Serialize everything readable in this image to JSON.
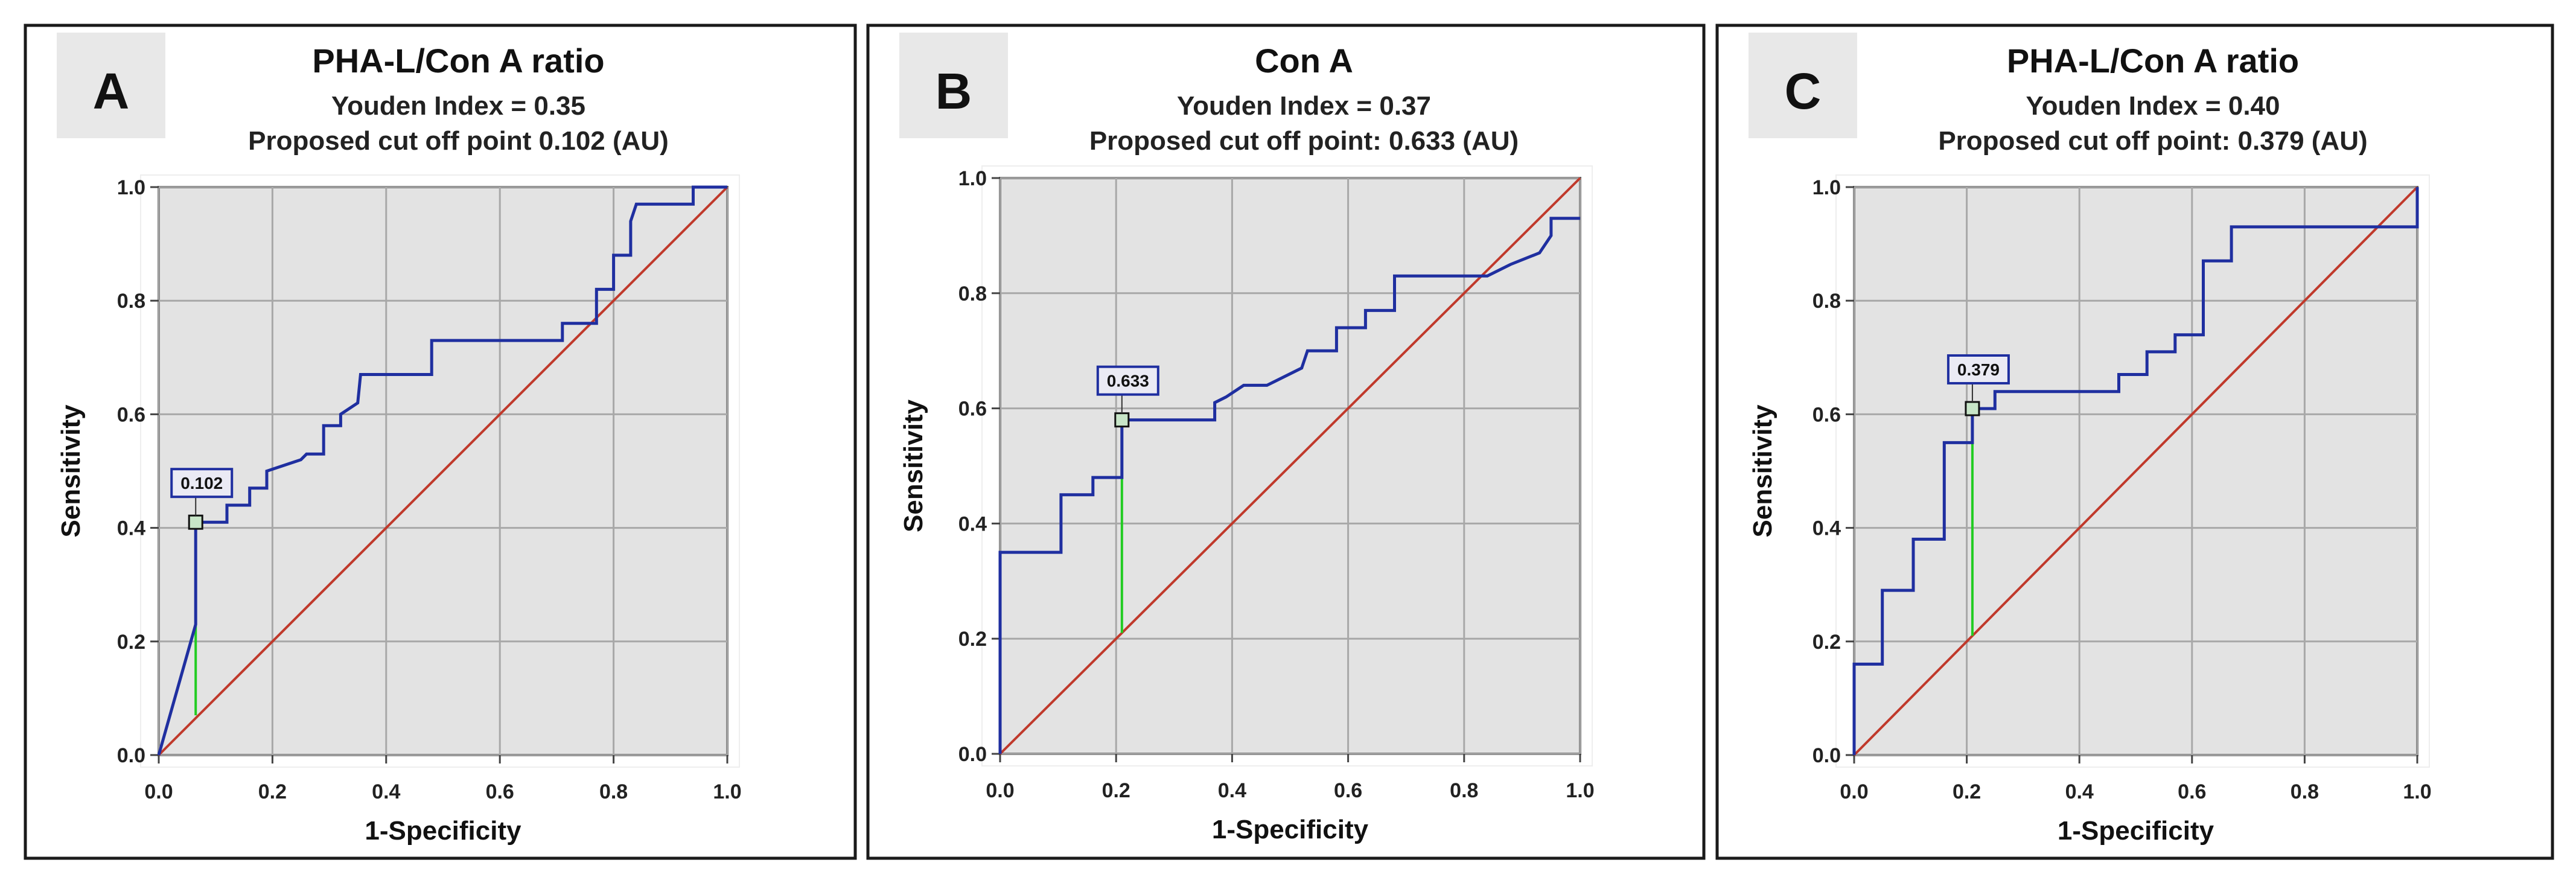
{
  "chart_data": [
    {
      "type": "line",
      "panel_letter": "A",
      "title": "PHA-L/Con A ratio",
      "subtitle_lines": [
        "Youden Index  = 0.35",
        "Proposed cut off point 0.102 (AU)"
      ],
      "xlabel": "1-Specificity",
      "ylabel": "Sensitivity",
      "xlim": [
        0,
        1
      ],
      "ylim": [
        0,
        1
      ],
      "x_ticks": [
        "0.0",
        "0.2",
        "0.4",
        "0.6",
        "0.8",
        "1.0"
      ],
      "y_ticks": [
        "0.0",
        "0.2",
        "0.4",
        "0.6",
        "0.8",
        "1.0"
      ],
      "grid": true,
      "colors": {
        "roc": "#1f2fa0",
        "diagonal": "#c0392b",
        "youden": "#22cc22",
        "plot_bg": "#e3e3e3"
      },
      "roc": [
        [
          0,
          0
        ],
        [
          0.065,
          0.23
        ],
        [
          0.065,
          0.41
        ],
        [
          0.12,
          0.41
        ],
        [
          0.12,
          0.44
        ],
        [
          0.16,
          0.44
        ],
        [
          0.16,
          0.47
        ],
        [
          0.19,
          0.47
        ],
        [
          0.19,
          0.5
        ],
        [
          0.22,
          0.51
        ],
        [
          0.25,
          0.52
        ],
        [
          0.26,
          0.53
        ],
        [
          0.29,
          0.53
        ],
        [
          0.29,
          0.58
        ],
        [
          0.32,
          0.58
        ],
        [
          0.32,
          0.6
        ],
        [
          0.35,
          0.62
        ],
        [
          0.355,
          0.67
        ],
        [
          0.48,
          0.67
        ],
        [
          0.48,
          0.73
        ],
        [
          0.71,
          0.73
        ],
        [
          0.71,
          0.76
        ],
        [
          0.77,
          0.76
        ],
        [
          0.77,
          0.82
        ],
        [
          0.8,
          0.82
        ],
        [
          0.8,
          0.88
        ],
        [
          0.83,
          0.88
        ],
        [
          0.83,
          0.94
        ],
        [
          0.84,
          0.97
        ],
        [
          0.94,
          0.97
        ],
        [
          0.94,
          1
        ],
        [
          1,
          1
        ]
      ],
      "cutoff": {
        "label": "0.102",
        "x": 0.065,
        "y": 0.41,
        "diag_y": 0.07
      }
    },
    {
      "type": "line",
      "panel_letter": "B",
      "title": "Con A",
      "subtitle_lines": [
        "Youden Index  = 0.37",
        "Proposed cut off point: 0.633 (AU)"
      ],
      "xlabel": "1-Specificity",
      "ylabel": "Sensitivity",
      "xlim": [
        0,
        1
      ],
      "ylim": [
        0,
        1
      ],
      "x_ticks": [
        "0.0",
        "0.2",
        "0.4",
        "0.6",
        "0.8",
        "1.0"
      ],
      "y_ticks": [
        "0.0",
        "0.2",
        "0.4",
        "0.6",
        "0.8",
        "1.0"
      ],
      "grid": true,
      "colors": {
        "roc": "#1f2fa0",
        "diagonal": "#c0392b",
        "youden": "#22cc22",
        "plot_bg": "#e3e3e3"
      },
      "roc": [
        [
          0,
          0
        ],
        [
          0,
          0.35
        ],
        [
          0.105,
          0.35
        ],
        [
          0.105,
          0.45
        ],
        [
          0.16,
          0.45
        ],
        [
          0.16,
          0.48
        ],
        [
          0.21,
          0.48
        ],
        [
          0.21,
          0.58
        ],
        [
          0.37,
          0.58
        ],
        [
          0.37,
          0.61
        ],
        [
          0.39,
          0.62
        ],
        [
          0.42,
          0.64
        ],
        [
          0.46,
          0.64
        ],
        [
          0.48,
          0.65
        ],
        [
          0.52,
          0.67
        ],
        [
          0.53,
          0.7
        ],
        [
          0.58,
          0.7
        ],
        [
          0.58,
          0.74
        ],
        [
          0.63,
          0.74
        ],
        [
          0.63,
          0.77
        ],
        [
          0.68,
          0.77
        ],
        [
          0.68,
          0.83
        ],
        [
          0.84,
          0.83
        ],
        [
          0.88,
          0.85
        ],
        [
          0.93,
          0.87
        ],
        [
          0.95,
          0.9
        ],
        [
          0.95,
          0.93
        ],
        [
          1,
          0.93
        ]
      ],
      "cutoff": {
        "label": "0.633",
        "x": 0.21,
        "y": 0.58,
        "diag_y": 0.21
      }
    },
    {
      "type": "line",
      "panel_letter": "C",
      "title": "PHA-L/Con A ratio",
      "subtitle_lines": [
        "Youden Index  = 0.40",
        "Proposed cut off point: 0.379 (AU)"
      ],
      "xlabel": "1-Specificity",
      "ylabel": "Sensitivity",
      "xlim": [
        0,
        1
      ],
      "ylim": [
        0,
        1
      ],
      "x_ticks": [
        "0.0",
        "0.2",
        "0.4",
        "0.6",
        "0.8",
        "1.0"
      ],
      "y_ticks": [
        "0.0",
        "0.2",
        "0.4",
        "0.6",
        "0.8",
        "1.0"
      ],
      "grid": true,
      "colors": {
        "roc": "#1f2fa0",
        "diagonal": "#c0392b",
        "youden": "#22cc22",
        "plot_bg": "#e3e3e3"
      },
      "roc": [
        [
          0,
          0
        ],
        [
          0,
          0.16
        ],
        [
          0.05,
          0.16
        ],
        [
          0.05,
          0.29
        ],
        [
          0.105,
          0.29
        ],
        [
          0.105,
          0.38
        ],
        [
          0.16,
          0.38
        ],
        [
          0.16,
          0.55
        ],
        [
          0.21,
          0.55
        ],
        [
          0.21,
          0.61
        ],
        [
          0.25,
          0.61
        ],
        [
          0.25,
          0.64
        ],
        [
          0.47,
          0.64
        ],
        [
          0.47,
          0.67
        ],
        [
          0.52,
          0.67
        ],
        [
          0.52,
          0.71
        ],
        [
          0.57,
          0.71
        ],
        [
          0.57,
          0.74
        ],
        [
          0.62,
          0.74
        ],
        [
          0.62,
          0.87
        ],
        [
          0.67,
          0.87
        ],
        [
          0.67,
          0.93
        ],
        [
          1,
          0.93
        ],
        [
          1,
          1
        ]
      ],
      "cutoff": {
        "label": "0.379",
        "x": 0.21,
        "y": 0.61,
        "diag_y": 0.21
      }
    }
  ]
}
